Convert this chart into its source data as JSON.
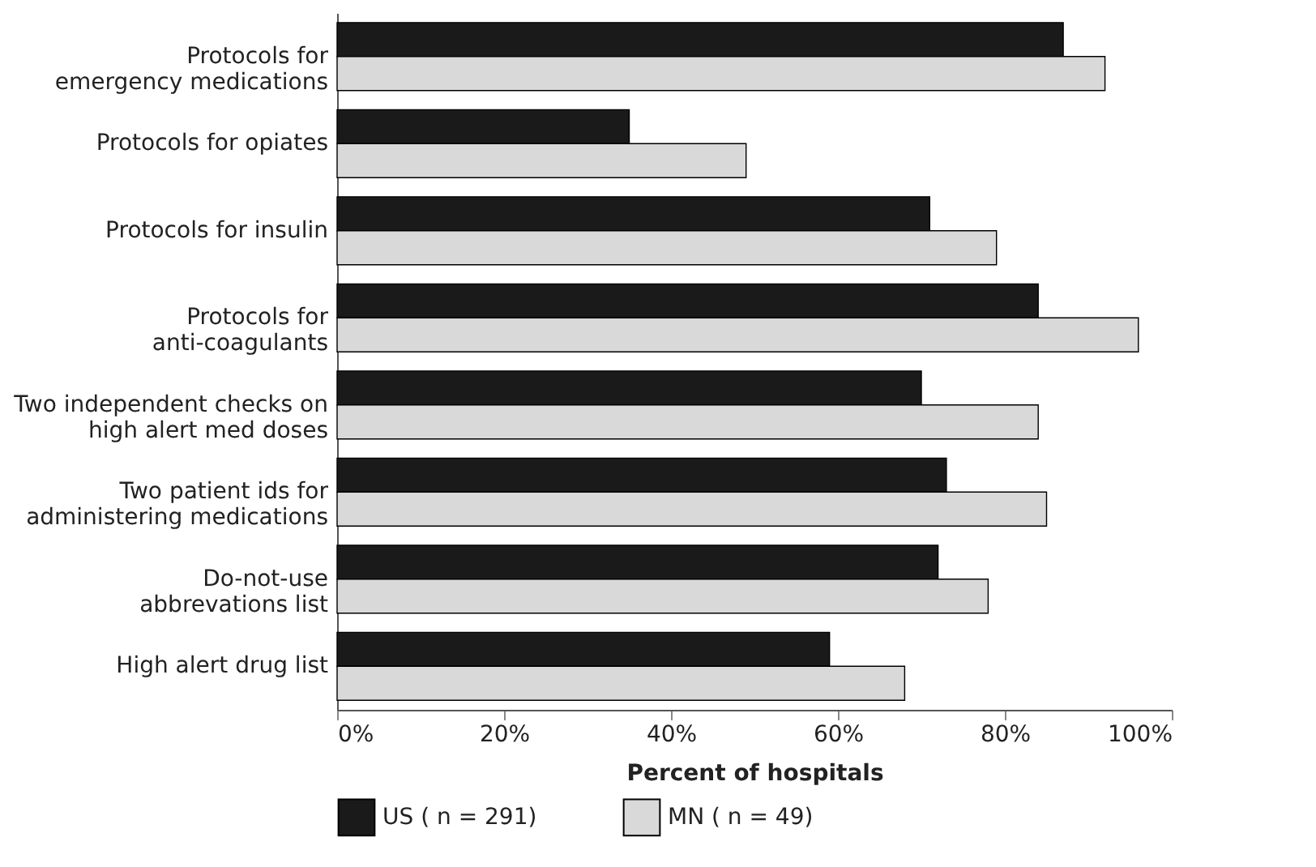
{
  "chart_data": {
    "type": "bar",
    "orientation": "horizontal",
    "xlabel": "Percent of hospitals",
    "categories": [
      "Protocols for\nemergency medications",
      "Protocols for opiates",
      "Protocols for insulin",
      "Protocols for\nanti-coagulants",
      "Two independent checks on\nhigh alert med doses",
      "Two patient ids for\nadministering medications",
      "Do-not-use\nabbrevations list",
      "High alert drug list"
    ],
    "series": [
      {
        "name": "US ( n = 291)",
        "color": "#1a1a1a",
        "values": [
          87,
          35,
          71,
          84,
          70,
          73,
          72,
          59
        ]
      },
      {
        "name": "MN ( n = 49)",
        "color": "#d9d9d9",
        "values": [
          92,
          49,
          79,
          96,
          84,
          85,
          78,
          68
        ]
      }
    ],
    "xlim": [
      0,
      100
    ],
    "xticks": [
      {
        "value": 0,
        "label": "0%"
      },
      {
        "value": 20,
        "label": "20%"
      },
      {
        "value": 40,
        "label": "40%"
      },
      {
        "value": 60,
        "label": "60%"
      },
      {
        "value": 80,
        "label": "80%"
      },
      {
        "value": 100,
        "label": "100%"
      }
    ],
    "legend": "bottom",
    "grid": false
  }
}
